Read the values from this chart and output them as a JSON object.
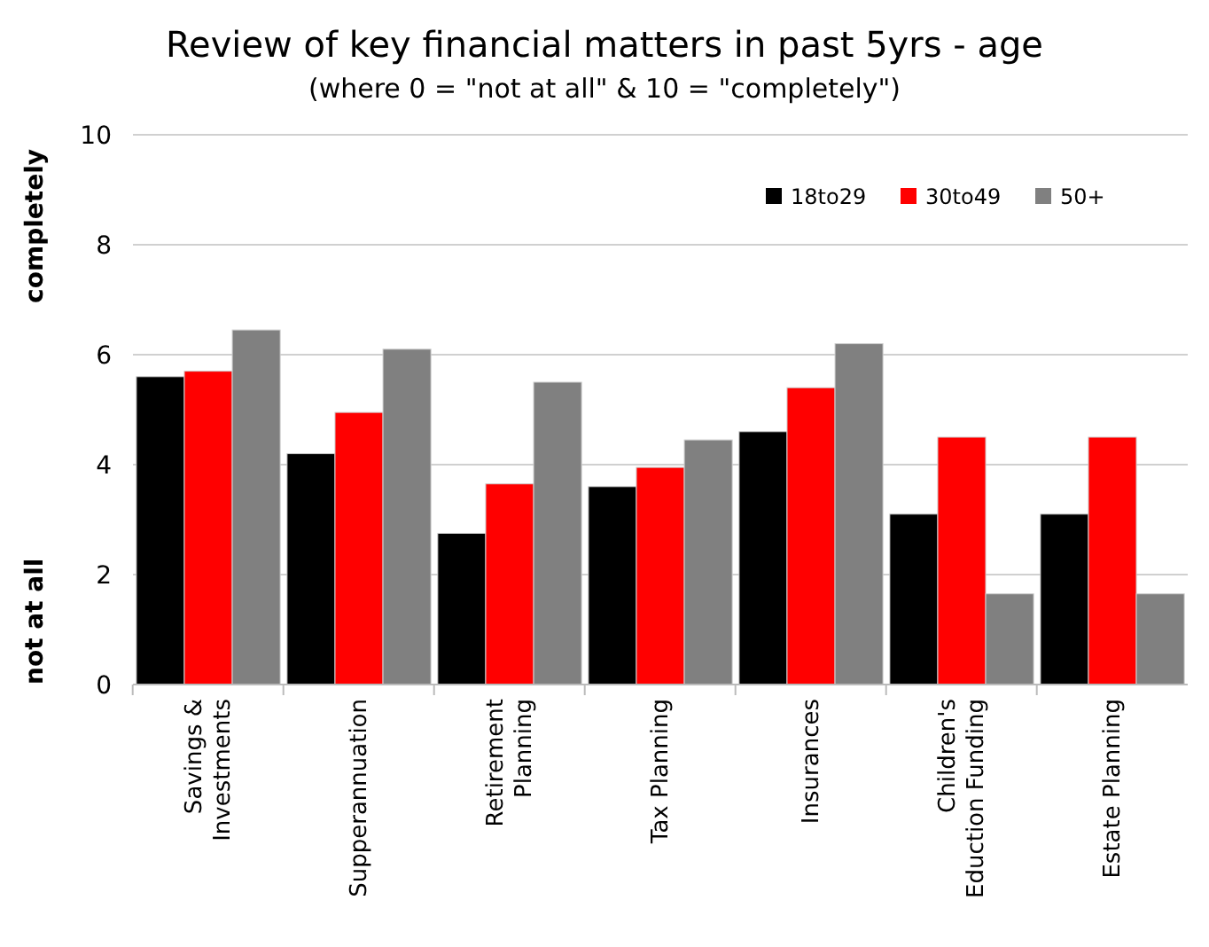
{
  "chart_data": {
    "type": "bar",
    "title": "Review of key financial matters in past 5yrs - age",
    "subtitle": "(where 0 = \"not at all\" & 10 = \"completely\")",
    "ylabel": "not at all",
    "annotations": [
      "completely"
    ],
    "categories": [
      "Savings &\nInvestments",
      "Supperannuation",
      "Retirement\nPlanning",
      "Tax Planning",
      "Insurances",
      "Children's\nEduction Funding",
      "Estate Planning"
    ],
    "series": [
      {
        "name": "18to29",
        "color": "#000000",
        "values": [
          5.6,
          4.2,
          2.75,
          3.6,
          4.6,
          3.1,
          3.1
        ]
      },
      {
        "name": "30to49",
        "color": "#ff0000",
        "values": [
          5.7,
          4.95,
          3.65,
          3.95,
          5.4,
          4.5,
          4.5
        ]
      },
      {
        "name": "50+",
        "color": "#808080",
        "values": [
          6.45,
          6.1,
          5.5,
          4.45,
          6.2,
          1.65,
          1.65
        ]
      }
    ],
    "ylim": [
      0,
      10
    ],
    "yticks": [
      0,
      2,
      4,
      6,
      8,
      10
    ],
    "grid": "y",
    "legend": "top right"
  }
}
